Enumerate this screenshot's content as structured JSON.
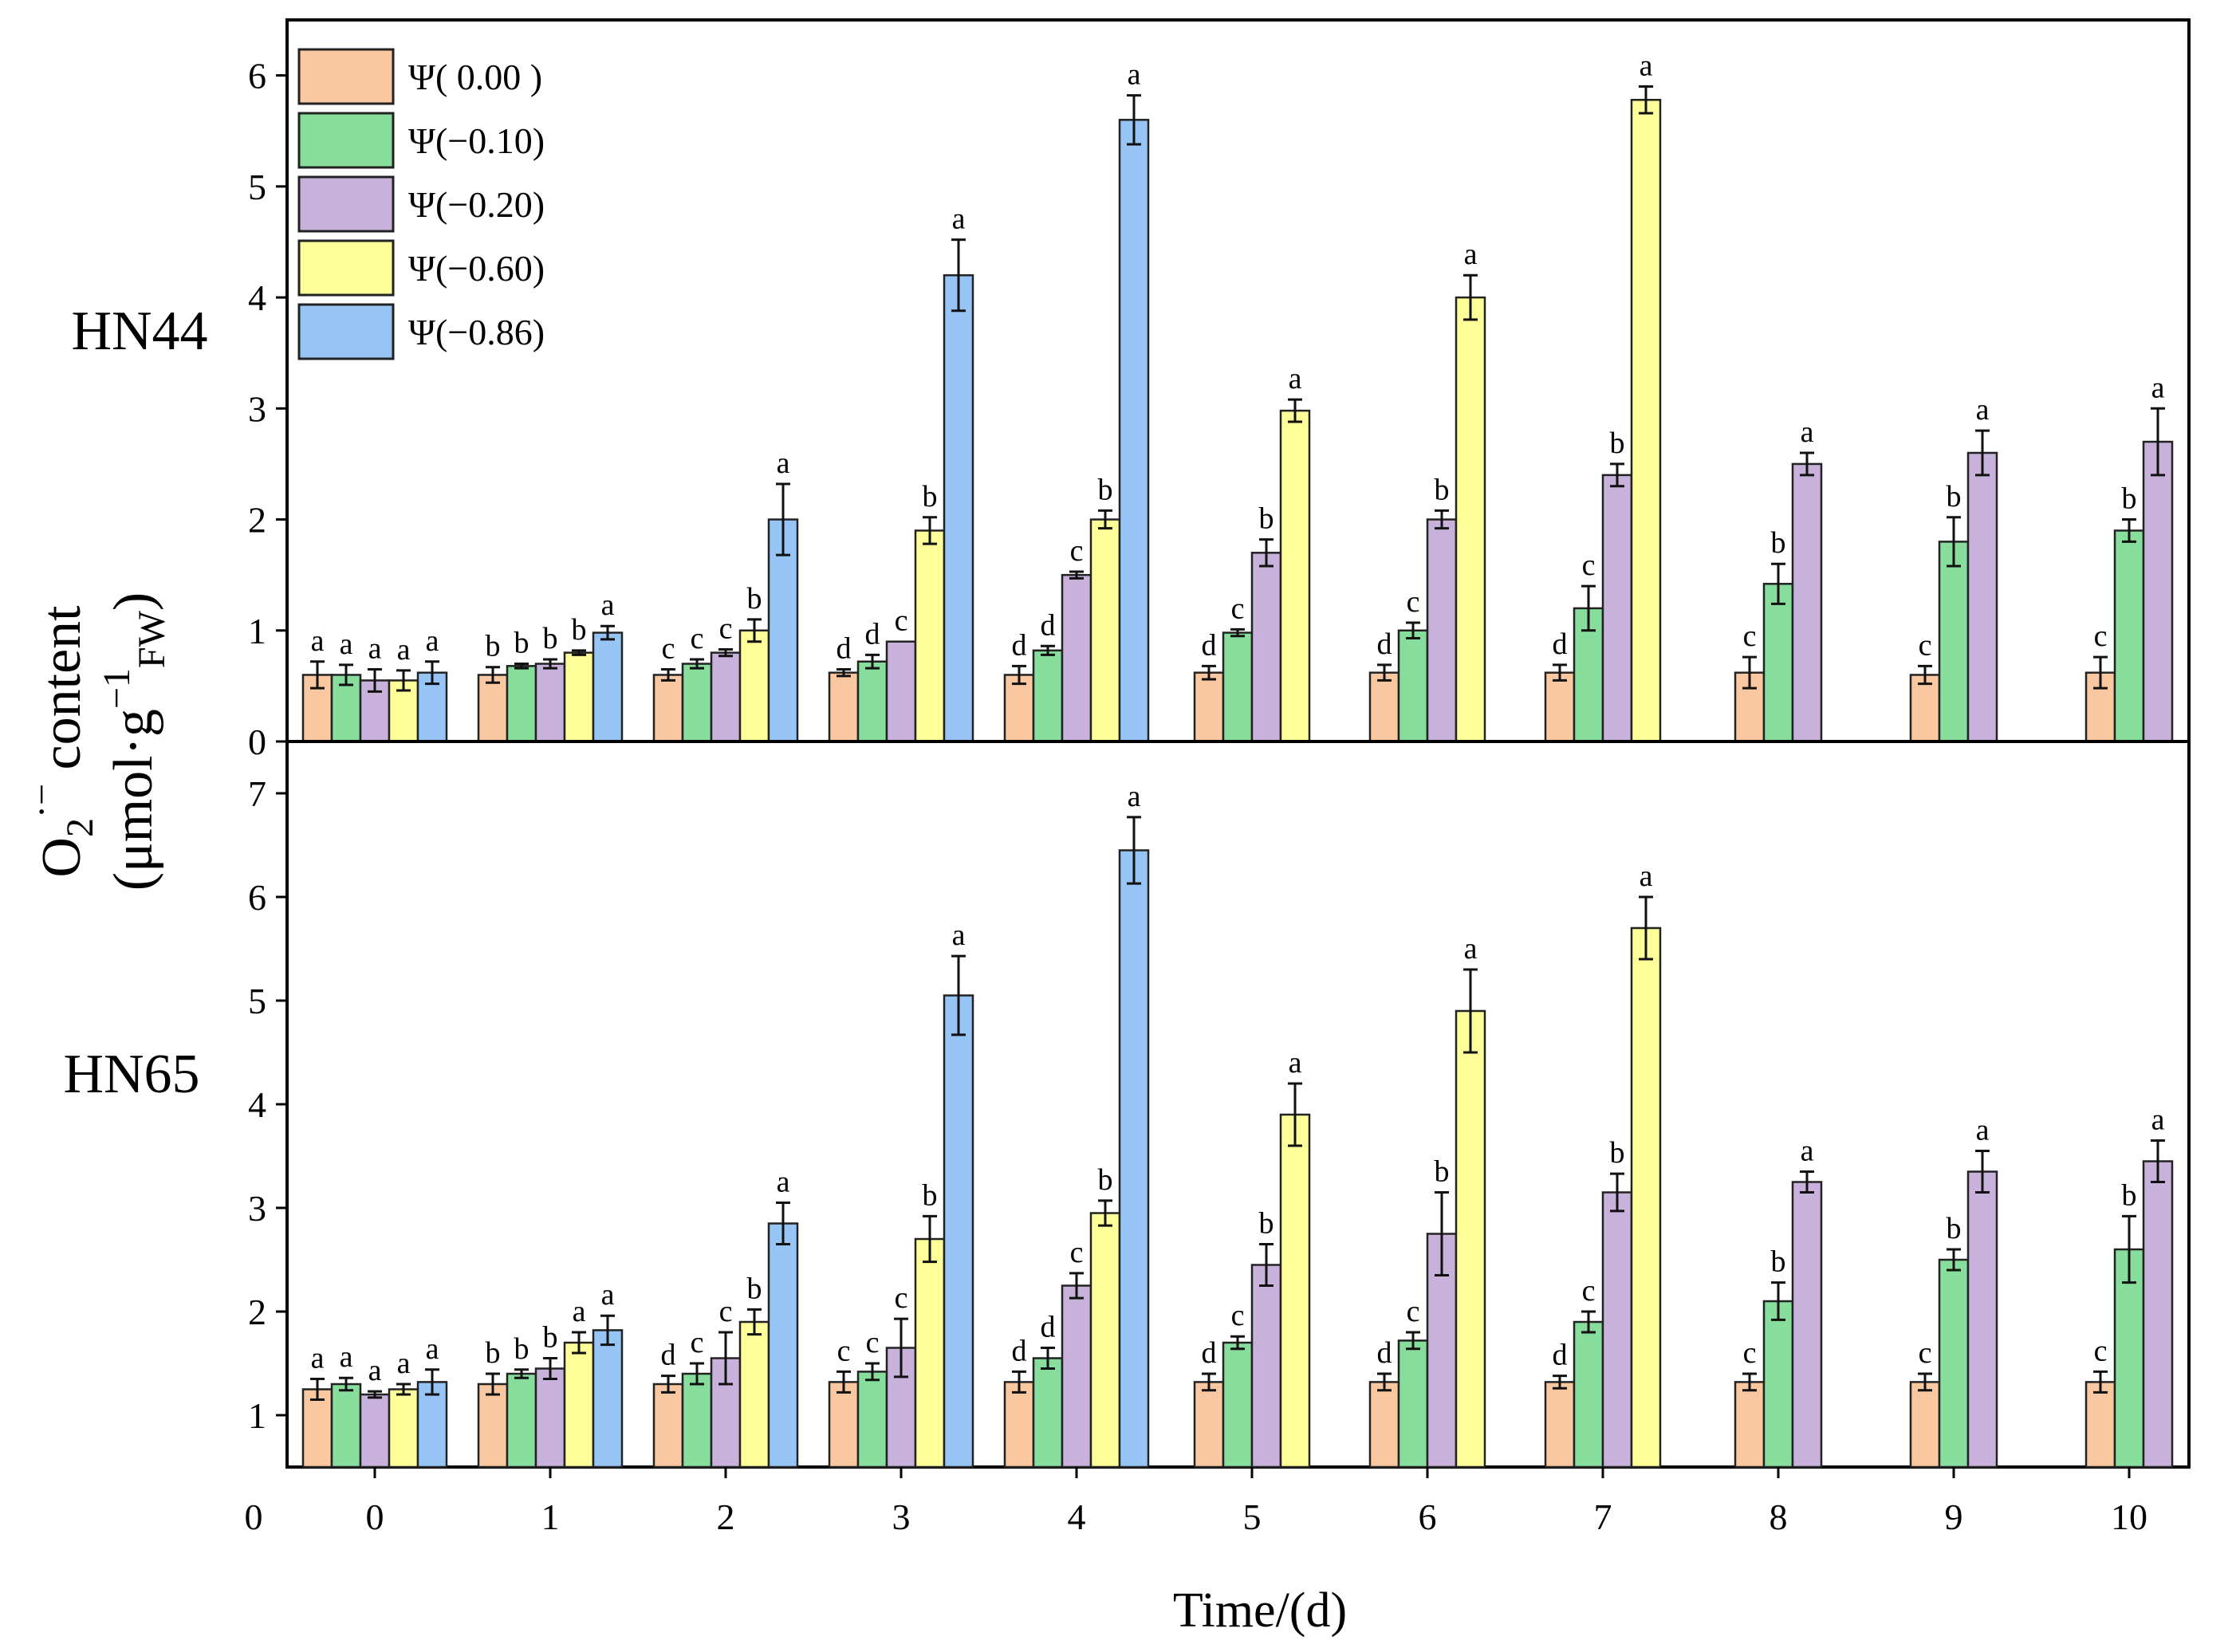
{
  "chart_data": {
    "type": "bar",
    "xlabel": "Time/(d)",
    "ylabel": {
      "line1_base": "O",
      "line1_sub": "2",
      "line1_sup": "·−",
      "line1_rest": " content",
      "line2_pre": "(μmol·g",
      "line2_sup": "−1",
      "line2_sub": "FW",
      "line2_post": ")"
    },
    "x_origin_label": "0",
    "categories": [
      "0",
      "1",
      "2",
      "3",
      "4",
      "5",
      "6",
      "7",
      "8",
      "9",
      "10"
    ],
    "series_names": [
      "Ψ( 0.00 )",
      "Ψ(−0.10)",
      "Ψ(−0.20)",
      "Ψ(−0.60)",
      "Ψ(−0.86)"
    ],
    "colors": [
      "#f9c8a0",
      "#86dd9c",
      "#c8b2dc",
      "#ffff99",
      "#96c4f4"
    ],
    "panels": [
      {
        "label": "HN44",
        "ylim": [
          0,
          6.5
        ],
        "yticks": [
          "0",
          "1",
          "2",
          "3",
          "4",
          "5",
          "6"
        ],
        "series": [
          {
            "name": "Ψ( 0.00 )",
            "values": [
              0.6,
              0.6,
              0.6,
              0.62,
              0.6,
              0.62,
              0.62,
              0.62,
              0.62,
              0.6,
              0.62
            ],
            "errors": [
              0.12,
              0.07,
              0.05,
              0.03,
              0.08,
              0.06,
              0.07,
              0.07,
              0.14,
              0.08,
              0.14
            ],
            "letters": [
              "a",
              "b",
              "c",
              "d",
              "d",
              "d",
              "d",
              "d",
              "c",
              "c",
              "c"
            ]
          },
          {
            "name": "Ψ(−0.10)",
            "values": [
              0.6,
              0.68,
              0.7,
              0.72,
              0.82,
              0.98,
              1.0,
              1.2,
              1.42,
              1.8,
              1.9
            ],
            "errors": [
              0.09,
              0.02,
              0.04,
              0.06,
              0.04,
              0.03,
              0.07,
              0.2,
              0.18,
              0.22,
              0.1
            ],
            "letters": [
              "a",
              "b",
              "c",
              "d",
              "d",
              "c",
              "c",
              "c",
              "b",
              "b",
              "b"
            ]
          },
          {
            "name": "Ψ(−0.20)",
            "values": [
              0.55,
              0.7,
              0.8,
              0.9,
              1.5,
              1.7,
              2.0,
              2.4,
              2.5,
              2.6,
              2.7
            ],
            "errors": [
              0.1,
              0.04,
              0.03,
              0.0,
              0.03,
              0.12,
              0.08,
              0.1,
              0.1,
              0.2,
              0.3
            ],
            "letters": [
              "a",
              "b",
              "c",
              "c",
              "c",
              "b",
              "b",
              "b",
              "a",
              "a",
              "a"
            ]
          },
          {
            "name": "Ψ(−0.60)",
            "values": [
              0.55,
              0.8,
              1.0,
              1.9,
              2.0,
              2.98,
              4.0,
              5.78,
              null,
              null,
              null
            ],
            "errors": [
              0.09,
              0.02,
              0.1,
              0.12,
              0.08,
              0.1,
              0.2,
              0.12,
              null,
              null,
              null
            ],
            "letters": [
              "a",
              "b",
              "b",
              "b",
              "b",
              "a",
              "a",
              "a",
              "",
              "",
              ""
            ]
          },
          {
            "name": "Ψ(−0.86)",
            "values": [
              0.62,
              0.98,
              2.0,
              4.2,
              5.6,
              null,
              null,
              null,
              null,
              null,
              null
            ],
            "errors": [
              0.1,
              0.06,
              0.32,
              0.32,
              0.22,
              null,
              null,
              null,
              null,
              null,
              null
            ],
            "letters": [
              "a",
              "a",
              "a",
              "a",
              "a",
              "",
              "",
              "",
              "",
              "",
              ""
            ]
          }
        ]
      },
      {
        "label": "HN65",
        "ylim": [
          0.5,
          7.5
        ],
        "yticks": [
          "1",
          "2",
          "3",
          "4",
          "5",
          "6",
          "7"
        ],
        "series": [
          {
            "name": "Ψ( 0.00 )",
            "values": [
              1.25,
              1.3,
              1.3,
              1.32,
              1.32,
              1.32,
              1.32,
              1.32,
              1.32,
              1.32,
              1.32
            ],
            "errors": [
              0.1,
              0.1,
              0.08,
              0.1,
              0.1,
              0.08,
              0.08,
              0.06,
              0.08,
              0.08,
              0.1
            ],
            "letters": [
              "a",
              "b",
              "d",
              "c",
              "d",
              "d",
              "d",
              "d",
              "c",
              "c",
              "c"
            ]
          },
          {
            "name": "Ψ(−0.10)",
            "values": [
              1.3,
              1.4,
              1.4,
              1.42,
              1.55,
              1.7,
              1.72,
              1.9,
              2.1,
              2.5,
              2.6
            ],
            "errors": [
              0.06,
              0.04,
              0.1,
              0.08,
              0.1,
              0.06,
              0.08,
              0.1,
              0.18,
              0.1,
              0.32
            ],
            "letters": [
              "a",
              "b",
              "c",
              "c",
              "d",
              "c",
              "c",
              "c",
              "b",
              "b",
              "b"
            ]
          },
          {
            "name": "Ψ(−0.20)",
            "values": [
              1.2,
              1.45,
              1.55,
              1.65,
              2.25,
              2.45,
              2.75,
              3.15,
              3.25,
              3.35,
              3.45
            ],
            "errors": [
              0.03,
              0.1,
              0.25,
              0.28,
              0.12,
              0.2,
              0.4,
              0.18,
              0.1,
              0.2,
              0.2
            ],
            "letters": [
              "a",
              "b",
              "c",
              "c",
              "c",
              "b",
              "b",
              "b",
              "a",
              "a",
              "a"
            ]
          },
          {
            "name": "Ψ(−0.60)",
            "values": [
              1.25,
              1.7,
              1.9,
              2.7,
              2.95,
              3.9,
              4.9,
              5.7,
              null,
              null,
              null
            ],
            "errors": [
              0.05,
              0.1,
              0.12,
              0.22,
              0.12,
              0.3,
              0.4,
              0.3,
              null,
              null,
              null
            ],
            "letters": [
              "a",
              "a",
              "b",
              "b",
              "b",
              "a",
              "a",
              "a",
              "",
              "",
              ""
            ]
          },
          {
            "name": "Ψ(−0.86)",
            "values": [
              1.32,
              1.82,
              2.85,
              5.05,
              6.45,
              null,
              null,
              null,
              null,
              null,
              null
            ],
            "errors": [
              0.12,
              0.14,
              0.2,
              0.38,
              0.32,
              null,
              null,
              null,
              null,
              null,
              null
            ],
            "letters": [
              "a",
              "a",
              "a",
              "a",
              "a",
              "",
              "",
              "",
              "",
              "",
              ""
            ]
          }
        ]
      }
    ]
  }
}
